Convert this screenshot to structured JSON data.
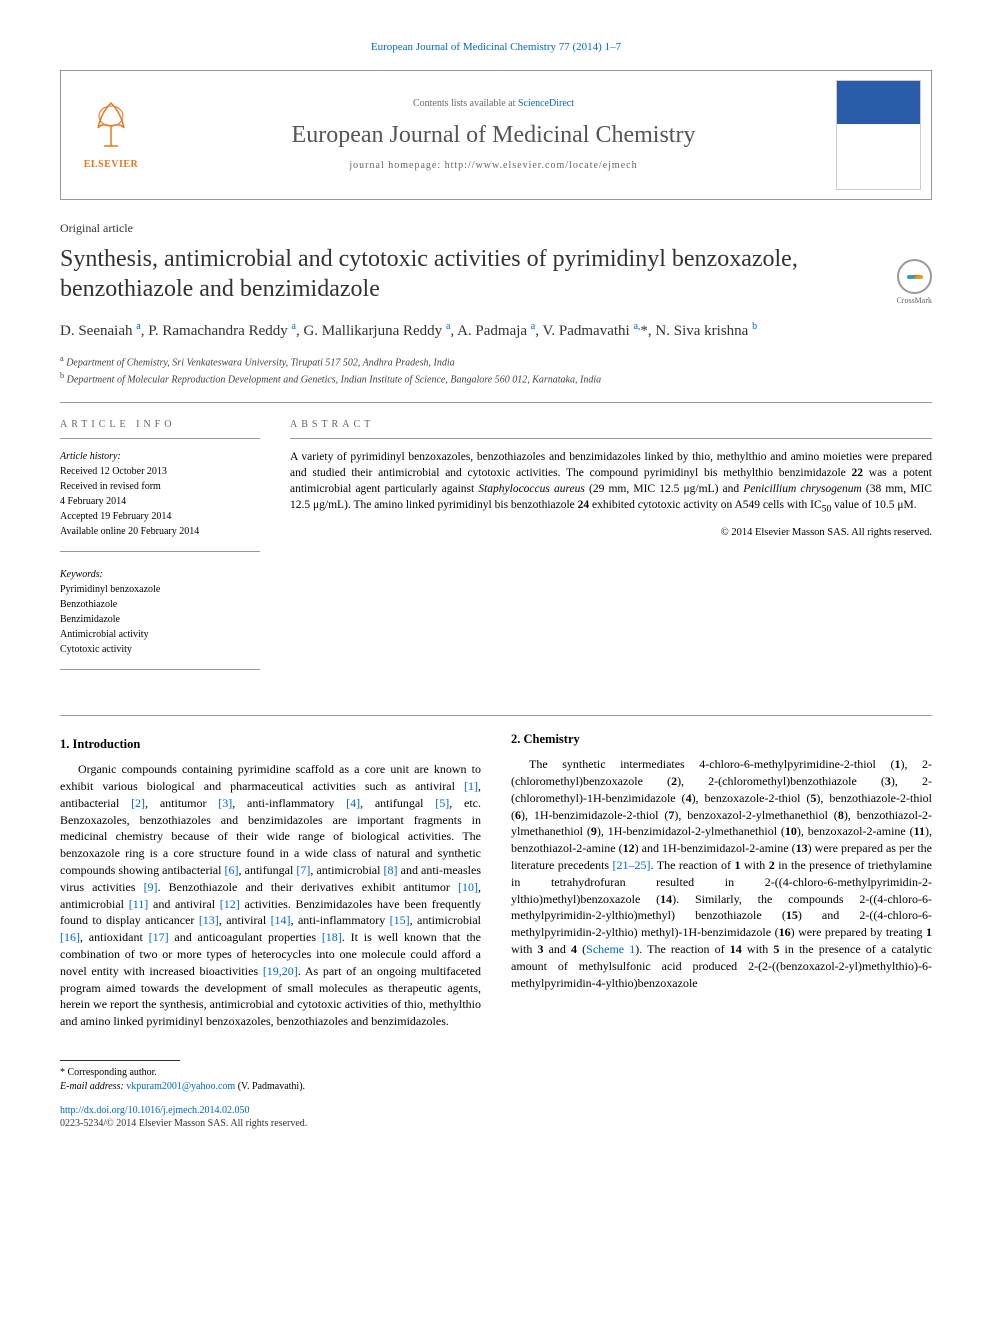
{
  "header": {
    "citation": "European Journal of Medicinal Chemistry 77 (2014) 1–7",
    "contents_prefix": "Contents lists available at ",
    "contents_link": "ScienceDirect",
    "journal_name": "European Journal of Medicinal Chemistry",
    "homepage_prefix": "journal homepage: ",
    "homepage_url": "http://www.elsevier.com/locate/ejmech",
    "elsevier_label": "ELSEVIER"
  },
  "article_type": "Original article",
  "title": "Synthesis, antimicrobial and cytotoxic activities of pyrimidinyl benzoxazole, benzothiazole and benzimidazole",
  "crossmark_label": "CrossMark",
  "authors_html": "D. Seenaiah <sup>a</sup>, P. Ramachandra Reddy <sup>a</sup>, G. Mallikarjuna Reddy <sup>a</sup>, A. Padmaja <sup>a</sup>, V. Padmavathi <sup>a,</sup>*, N. Siva krishna <sup>b</sup>",
  "affiliations": {
    "a": "Department of Chemistry, Sri Venkateswara University, Tirupati 517 502, Andhra Pradesh, India",
    "b": "Department of Molecular Reproduction Development and Genetics, Indian Institute of Science, Bangalore 560 012, Karnataka, India"
  },
  "info": {
    "heading": "ARTICLE INFO",
    "history_label": "Article history:",
    "history": [
      "Received 12 October 2013",
      "Received in revised form",
      "4 February 2014",
      "Accepted 19 February 2014",
      "Available online 20 February 2014"
    ],
    "keywords_label": "Keywords:",
    "keywords": [
      "Pyrimidinyl benzoxazole",
      "Benzothiazole",
      "Benzimidazole",
      "Antimicrobial activity",
      "Cytotoxic activity"
    ]
  },
  "abstract": {
    "heading": "ABSTRACT",
    "text": "A variety of pyrimidinyl benzoxazoles, benzothiazoles and benzimidazoles linked by thio, methylthio and amino moieties were prepared and studied their antimicrobial and cytotoxic activities. The compound pyrimidinyl bis methylthio benzimidazole 22 was a potent antimicrobial agent particularly against Staphylococcus aureus (29 mm, MIC 12.5 μg/mL) and Penicillium chrysogenum (38 mm, MIC 12.5 μg/mL). The amino linked pyrimidinyl bis benzothiazole 24 exhibited cytotoxic activity on A549 cells with IC50 value of 10.5 μM.",
    "copyright": "© 2014 Elsevier Masson SAS. All rights reserved."
  },
  "sections": {
    "intro": {
      "heading": "1. Introduction",
      "p1": "Organic compounds containing pyrimidine scaffold as a core unit are known to exhibit various biological and pharmaceutical activities such as antiviral [1], antibacterial [2], antitumor [3], anti-inflammatory [4], antifungal [5], etc. Benzoxazoles, benzothiazoles and benzimidazoles are important fragments in medicinal chemistry because of their wide range of biological activities. The benzoxazole ring is a core structure found in a wide class of natural and synthetic compounds showing antibacterial [6], antifungal [7], antimicrobial [8] and anti-measles virus activities [9]. Benzothiazole and their derivatives exhibit antitumor [10], antimicrobial [11] and antiviral [12] activities. Benzimidazoles have been frequently found to display anticancer [13], antiviral [14], anti-inflammatory [15], antimicrobial [16], antioxidant [17] and anticoagulant properties [18]. It is well known that the combination of two or more types of heterocycles into one molecule could afford a novel entity with increased bioactivities [19,20]. As part of an ongoing multifaceted program aimed towards the development of small molecules as therapeutic agents, herein we report the synthesis, antimicrobial and cytotoxic activities of thio, methylthio and amino linked pyrimidinyl benzoxazoles, benzothiazoles and benzimidazoles."
    },
    "chem": {
      "heading": "2. Chemistry",
      "p1": "The synthetic intermediates 4-chloro-6-methylpyrimidine-2-thiol (1), 2-(chloromethyl)benzoxazole (2), 2-(chloromethyl)benzothiazole (3), 2-(chloromethyl)-1H-benzimidazole (4), benzoxazole-2-thiol (5), benzothiazole-2-thiol (6), 1H-benzimidazole-2-thiol (7), benzoxazol-2-ylmethanethiol (8), benzothiazol-2-ylmethanethiol (9), 1H-benzimidazol-2-ylmethanethiol (10), benzoxazol-2-amine (11), benzothiazol-2-amine (12) and 1H-benzimidazol-2-amine (13) were prepared as per the literature precedents [21–25]. The reaction of 1 with 2 in the presence of triethylamine in tetrahydrofuran resulted in 2-((4-chloro-6-methylpyrimidin-2-ylthio)methyl)benzoxazole (14). Similarly, the compounds 2-((4-chloro-6-methylpyrimidin-2-ylthio)methyl) benzothiazole (15) and 2-((4-chloro-6-methylpyrimidin-2-ylthio) methyl)-1H-benzimidazole (16) were prepared by treating 1 with 3 and 4 (Scheme 1). The reaction of 14 with 5 in the presence of a catalytic amount of methylsulfonic acid produced 2-(2-((benzoxazol-2-yl)methylthio)-6-methylpyrimidin-4-ylthio)benzoxazole"
    }
  },
  "footnote": {
    "corr": "* Corresponding author.",
    "email_label": "E-mail address: ",
    "email": "vkpuram2001@yahoo.com",
    "email_suffix": " (V. Padmavathi)."
  },
  "doi": {
    "url": "http://dx.doi.org/10.1016/j.ejmech.2014.02.050",
    "issn": "0223-5234/© 2014 Elsevier Masson SAS. All rights reserved."
  },
  "colors": {
    "link": "#0066cc",
    "elsevier_orange": "#e87722",
    "text": "#000000",
    "heading_gray": "#555555"
  }
}
